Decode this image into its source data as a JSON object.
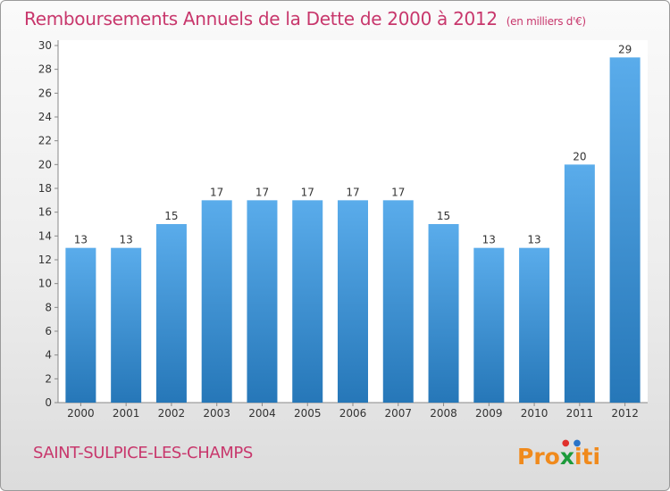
{
  "title": "Remboursements Annuels de la Dette de 2000 à 2012",
  "subtitle": "(en milliers d'€)",
  "commune": "SAINT-SULPICE-LES-CHAMPS",
  "logo": {
    "text": "Proxiti",
    "brand_color": "#c8376c"
  },
  "colors": {
    "bar_light": "#5aaceb",
    "bar_dark": "#2677b8",
    "accent": "#c8376c"
  },
  "chart_data": {
    "type": "bar",
    "title": "Remboursements Annuels de la Dette de 2000 à 2012",
    "xlabel": "",
    "ylabel": "",
    "categories": [
      "2000",
      "2001",
      "2002",
      "2003",
      "2004",
      "2005",
      "2006",
      "2007",
      "2008",
      "2009",
      "2010",
      "2011",
      "2012"
    ],
    "values": [
      13,
      13,
      15,
      17,
      17,
      17,
      17,
      17,
      15,
      13,
      13,
      20,
      29
    ],
    "ylim": [
      0,
      30
    ],
    "yticks": [
      0,
      2,
      4,
      6,
      8,
      10,
      12,
      14,
      16,
      18,
      20,
      22,
      24,
      26,
      28,
      30
    ],
    "grid": false,
    "legend": "none"
  }
}
